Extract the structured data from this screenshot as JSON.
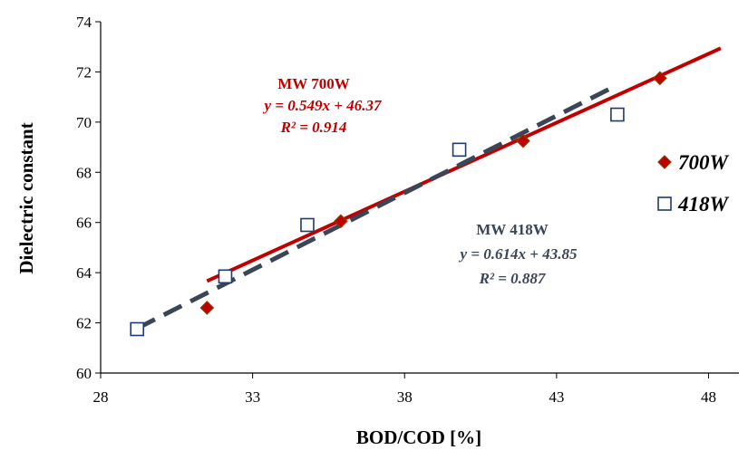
{
  "chart_data": {
    "type": "scatter",
    "xlabel": "BOD/COD [%]",
    "ylabel": "Dielectric constant",
    "xlim": [
      28,
      49
    ],
    "ylim": [
      60,
      74
    ],
    "xticks": [
      28,
      33,
      38,
      43,
      48
    ],
    "yticks": [
      60,
      62,
      64,
      66,
      68,
      70,
      72,
      74
    ],
    "grid": false,
    "legend_position": "right",
    "series": [
      {
        "name": "700W",
        "marker": "filled-diamond",
        "color": "#c00000",
        "edge_color": "#8b3a00",
        "x": [
          31.5,
          35.9,
          41.9,
          46.4
        ],
        "y": [
          62.6,
          66.05,
          69.25,
          71.75
        ],
        "trendline": {
          "x_range": [
            31.5,
            48.4
          ],
          "slope": 0.549,
          "intercept": 46.37,
          "style": "solid",
          "color": "#c00000"
        }
      },
      {
        "name": "418W",
        "marker": "open-square",
        "color": "#1f3a6e",
        "x": [
          29.2,
          32.1,
          34.8,
          39.8,
          45.0
        ],
        "y": [
          61.75,
          63.85,
          65.9,
          68.9,
          70.3
        ],
        "trendline": {
          "x_range": [
            29.2,
            44.9
          ],
          "slope": 0.614,
          "intercept": 43.85,
          "style": "dashed",
          "color": "#3a4556"
        }
      }
    ],
    "annotations": [
      {
        "lines": [
          "MW 700W",
          "y = 0.549x + 46.37",
          "R² = 0.914"
        ],
        "color": "#c00000"
      },
      {
        "lines": [
          "MW 418W",
          "y = 0.614x + 43.85",
          "R² = 0.887"
        ],
        "color": "#3a4556"
      }
    ]
  }
}
